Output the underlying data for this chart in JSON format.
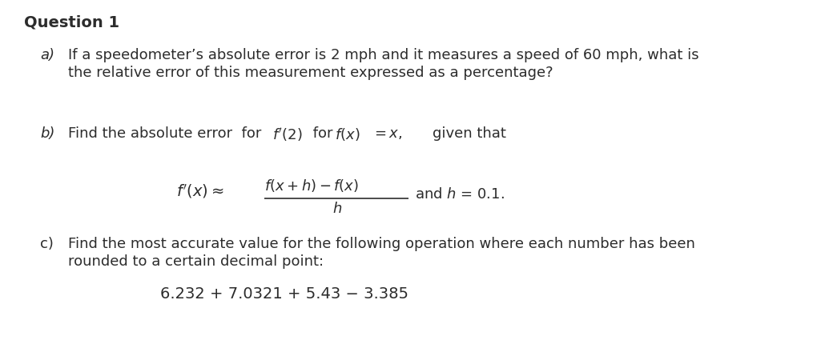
{
  "title": "Question 1",
  "background_color": "#ffffff",
  "text_color": "#2c2c2c",
  "part_a_label": "a)",
  "part_a_line1": "If a speedometer’s absolute error is 2 mph and it measures a speed of 60 mph, what is",
  "part_a_line2": "the relative error of this measurement expressed as a percentage?",
  "part_b_label": "b)",
  "part_b_text": "Find the absolute error  for  ",
  "part_b_given": "    given that",
  "part_c_label": "c)",
  "part_c_line1": "Find the most accurate value for the following operation where each number has been",
  "part_c_line2": "rounded to a certain decimal point:",
  "part_c_expr": "6.232 + 7.0321 + 5.43 − 3.385",
  "title_fontsize": 14,
  "body_fontsize": 13,
  "label_fontsize": 13,
  "formula_fontsize": 13,
  "expr_fontsize": 14
}
